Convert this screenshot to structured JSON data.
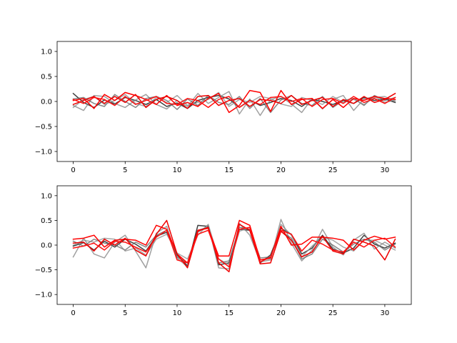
{
  "chart_data": [
    {
      "type": "line",
      "title": "",
      "xlabel": "",
      "ylabel": "",
      "xlim": [
        -1.55,
        32.55
      ],
      "ylim": [
        -1.2,
        1.2
      ],
      "x_ticks": [
        0,
        5,
        10,
        15,
        20,
        25,
        30
      ],
      "y_ticks": [
        -1.0,
        -0.5,
        0.0,
        0.5,
        1.0
      ],
      "y_tick_labels": [
        "−1.0",
        "−0.5",
        "0.0",
        "0.5",
        "1.0"
      ],
      "grid": false,
      "legend": "none",
      "x": [
        0,
        1,
        2,
        3,
        4,
        5,
        6,
        7,
        8,
        9,
        10,
        11,
        12,
        13,
        14,
        15,
        16,
        17,
        18,
        19,
        20,
        21,
        22,
        23,
        24,
        25,
        26,
        27,
        28,
        29,
        30,
        31
      ],
      "series": [
        {
          "color": "#000000",
          "values": [
            0.16,
            -0.02,
            -0.12,
            0.03,
            -0.05,
            0.08,
            0.02,
            -0.06,
            0.04,
            -0.1,
            -0.03,
            -0.14,
            0.02,
            0.08,
            0.12,
            0.05,
            -0.12,
            0.03,
            -0.08,
            -0.02,
            0.06,
            0.02,
            -0.1,
            0.04,
            0.0,
            -0.06,
            0.02,
            -0.04,
            0.08,
            0.02,
            0.05,
            -0.02
          ]
        },
        {
          "color": "#808080",
          "values": [
            -0.08,
            -0.18,
            0.12,
            0.1,
            -0.04,
            -0.12,
            0.03,
            0.14,
            -0.06,
            -0.15,
            0.02,
            -0.1,
            0.16,
            -0.04,
            0.08,
            0.2,
            -0.25,
            0.05,
            -0.28,
            0.04,
            0.1,
            -0.05,
            -0.22,
            0.06,
            -0.15,
            0.04,
            0.12,
            -0.18,
            0.05,
            0.1,
            -0.02,
            0.03
          ]
        },
        {
          "color": "#606060",
          "values": [
            0.05,
            0.08,
            -0.04,
            -0.1,
            0.14,
            0.0,
            -0.12,
            0.06,
            0.1,
            0.02,
            -0.16,
            0.05,
            -0.08,
            0.12,
            -0.02,
            -0.06,
            0.1,
            -0.14,
            0.06,
            -0.22,
            0.03,
            0.12,
            -0.04,
            -0.08,
            0.1,
            -0.12,
            0.02,
            0.06,
            -0.08,
            0.12,
            0.02,
            0.08
          ]
        },
        {
          "color": "#8a8a8a",
          "values": [
            -0.12,
            0.04,
            0.1,
            -0.06,
            0.02,
            0.14,
            -0.04,
            -0.1,
            0.08,
            -0.02,
            0.12,
            -0.08,
            -0.02,
            0.04,
            0.18,
            -0.1,
            0.04,
            -0.02,
            0.1,
            0.06,
            -0.05,
            -0.1,
            0.08,
            0.02,
            -0.06,
            0.1,
            -0.02,
            0.04,
            -0.06,
            0.08,
            0.1,
            0.0
          ]
        },
        {
          "color": "#ff0000",
          "values": [
            0.02,
            0.06,
            -0.14,
            0.14,
            0.02,
            0.18,
            0.12,
            0.04,
            -0.06,
            0.12,
            -0.08,
            -0.02,
            -0.1,
            0.06,
            0.16,
            -0.22,
            -0.08,
            0.22,
            0.18,
            -0.2,
            0.22,
            -0.06,
            0.04,
            0.06,
            -0.14,
            0.04,
            -0.12,
            0.06,
            0.02,
            0.1,
            0.06,
            0.04
          ]
        },
        {
          "color": "#ee0000",
          "values": [
            -0.06,
            0.02,
            0.1,
            -0.04,
            0.1,
            -0.02,
            0.14,
            -0.12,
            0.04,
            0.1,
            0.02,
            -0.14,
            0.1,
            0.12,
            -0.08,
            0.02,
            0.06,
            -0.1,
            0.04,
            0.02,
            -0.04,
            0.12,
            -0.06,
            0.02,
            0.08,
            -0.1,
            0.04,
            -0.04,
            0.1,
            -0.02,
            0.04,
            0.16
          ]
        },
        {
          "color": "#ff1010",
          "values": [
            0.04,
            -0.04,
            0.08,
            0.04,
            -0.08,
            0.1,
            -0.06,
            0.02,
            0.1,
            -0.04,
            -0.06,
            0.06,
            0.02,
            -0.12,
            0.04,
            0.1,
            -0.12,
            0.02,
            -0.06,
            0.08,
            0.1,
            0.0,
            0.06,
            -0.1,
            0.04,
            0.06,
            -0.04,
            0.1,
            -0.02,
            0.06,
            -0.04,
            0.08
          ]
        }
      ]
    },
    {
      "type": "line",
      "title": "",
      "xlabel": "",
      "ylabel": "",
      "xlim": [
        -1.55,
        32.55
      ],
      "ylim": [
        -1.2,
        1.2
      ],
      "x_ticks": [
        0,
        5,
        10,
        15,
        20,
        25,
        30
      ],
      "y_ticks": [
        -1.0,
        -0.5,
        0.0,
        0.5,
        1.0
      ],
      "y_tick_labels": [
        "−1.0",
        "−0.5",
        "0.0",
        "0.5",
        "1.0"
      ],
      "grid": false,
      "legend": "none",
      "x": [
        0,
        1,
        2,
        3,
        4,
        5,
        6,
        7,
        8,
        9,
        10,
        11,
        12,
        13,
        14,
        15,
        16,
        17,
        18,
        19,
        20,
        21,
        22,
        23,
        24,
        25,
        26,
        27,
        28,
        29,
        30,
        31
      ],
      "series": [
        {
          "color": "#000000",
          "values": [
            -0.02,
            0.05,
            -0.1,
            0.08,
            -0.04,
            0.12,
            0.02,
            -0.12,
            0.18,
            0.26,
            -0.2,
            -0.42,
            0.4,
            0.38,
            -0.4,
            -0.36,
            0.32,
            0.3,
            -0.36,
            -0.2,
            0.34,
            0.22,
            -0.18,
            -0.06,
            0.2,
            -0.08,
            -0.16,
            -0.06,
            0.2,
            0.02,
            -0.06,
            0.04
          ]
        },
        {
          "color": "#808080",
          "values": [
            -0.24,
            0.14,
            -0.18,
            -0.26,
            0.06,
            0.2,
            -0.12,
            -0.46,
            0.24,
            0.38,
            -0.26,
            -0.44,
            0.26,
            0.4,
            -0.46,
            -0.48,
            0.44,
            0.2,
            -0.34,
            -0.3,
            0.52,
            0.04,
            -0.32,
            -0.1,
            0.32,
            -0.04,
            -0.2,
            0.1,
            0.24,
            -0.08,
            0.06,
            -0.06
          ]
        },
        {
          "color": "#606060",
          "values": [
            0.08,
            -0.02,
            0.12,
            0.04,
            0.0,
            -0.1,
            0.06,
            -0.04,
            0.2,
            0.3,
            -0.24,
            -0.36,
            0.3,
            0.36,
            -0.36,
            -0.32,
            0.36,
            0.32,
            -0.26,
            -0.24,
            0.28,
            0.14,
            -0.28,
            -0.18,
            0.12,
            0.0,
            -0.14,
            0.02,
            0.12,
            0.06,
            -0.1,
            0.02
          ]
        },
        {
          "color": "#8a8a8a",
          "values": [
            0.0,
            0.1,
            0.06,
            0.14,
            0.12,
            -0.12,
            -0.06,
            -0.2,
            0.12,
            0.22,
            -0.16,
            -0.28,
            0.2,
            0.42,
            -0.28,
            -0.4,
            0.28,
            0.36,
            -0.3,
            -0.28,
            0.42,
            0.2,
            -0.24,
            -0.02,
            0.16,
            0.1,
            -0.04,
            -0.12,
            0.1,
            0.1,
            0.0,
            -0.1
          ]
        },
        {
          "color": "#ff0000",
          "values": [
            0.12,
            0.14,
            0.2,
            -0.04,
            0.1,
            0.12,
            0.1,
            0.0,
            0.4,
            0.32,
            -0.18,
            -0.36,
            0.3,
            0.34,
            -0.22,
            -0.22,
            0.5,
            0.4,
            -0.3,
            -0.26,
            0.38,
            0.0,
            0.02,
            0.16,
            0.16,
            0.14,
            0.1,
            -0.1,
            0.1,
            0.18,
            0.12,
            0.16
          ]
        },
        {
          "color": "#ee0000",
          "values": [
            0.04,
            0.06,
            -0.12,
            0.12,
            0.0,
            0.14,
            -0.1,
            -0.22,
            0.22,
            0.5,
            -0.18,
            -0.46,
            0.28,
            0.36,
            -0.36,
            -0.54,
            0.42,
            0.3,
            -0.38,
            -0.36,
            0.28,
            0.1,
            -0.24,
            -0.14,
            0.18,
            -0.12,
            -0.18,
            0.12,
            0.06,
            -0.02,
            -0.3,
            0.12
          ]
        },
        {
          "color": "#ff1010",
          "values": [
            -0.06,
            -0.02,
            0.04,
            -0.1,
            0.08,
            0.06,
            -0.04,
            -0.14,
            0.16,
            0.3,
            -0.3,
            -0.36,
            0.22,
            0.3,
            -0.28,
            -0.44,
            0.32,
            0.36,
            -0.34,
            -0.24,
            0.3,
            0.22,
            -0.12,
            0.1,
            0.02,
            -0.1,
            -0.14,
            0.06,
            -0.04,
            0.1,
            0.14,
            -0.04
          ]
        }
      ]
    }
  ]
}
